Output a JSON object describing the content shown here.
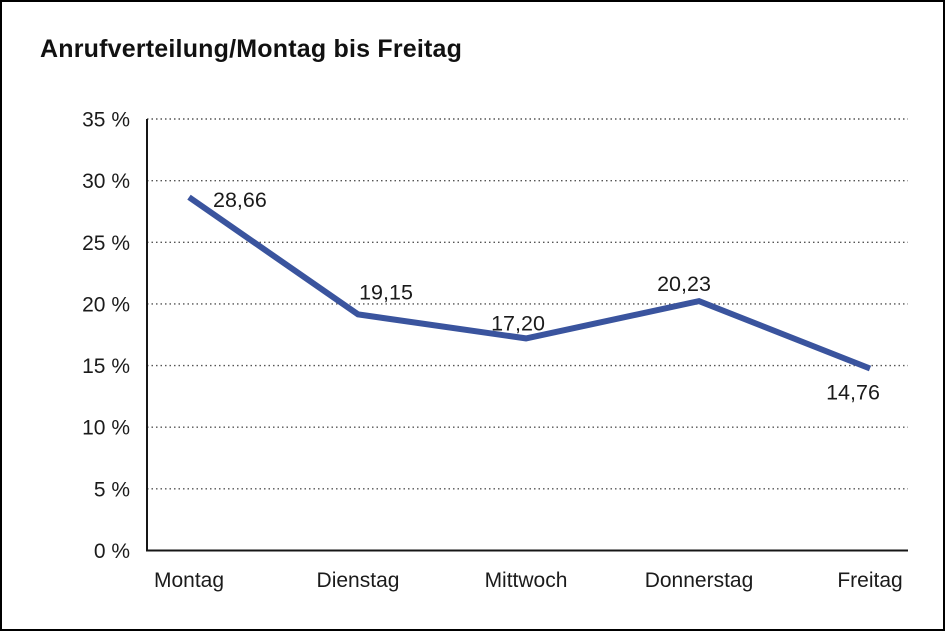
{
  "window": {
    "background_color": "#ffffff",
    "border_color": "#000000"
  },
  "chart_data": {
    "type": "line",
    "title": "Anrufverteilung/Montag bis Freitag",
    "categories": [
      "Montag",
      "Dienstag",
      "Mittwoch",
      "Donnerstag",
      "Freitag"
    ],
    "series": [
      {
        "name": "Anrufverteilung",
        "values": [
          28.66,
          19.15,
          17.2,
          20.23,
          14.76
        ]
      }
    ],
    "value_labels": [
      "28,66",
      "19,15",
      "17,20",
      "20,23",
      "14,76"
    ],
    "y_ticks": [
      "0 %",
      "5 %",
      "10 %",
      "15 %",
      "20 %",
      "25 %",
      "30 %",
      "35 %"
    ],
    "ylim": [
      0,
      35
    ],
    "y_tick_step": 5,
    "xlabel": "",
    "ylabel": "",
    "grid": "horizontal-dotted",
    "legend_position": "none",
    "line_color": "#3A549E",
    "text_color": "#1b1b1b",
    "axis_color": "#161616",
    "gridline_color": "#555555"
  }
}
